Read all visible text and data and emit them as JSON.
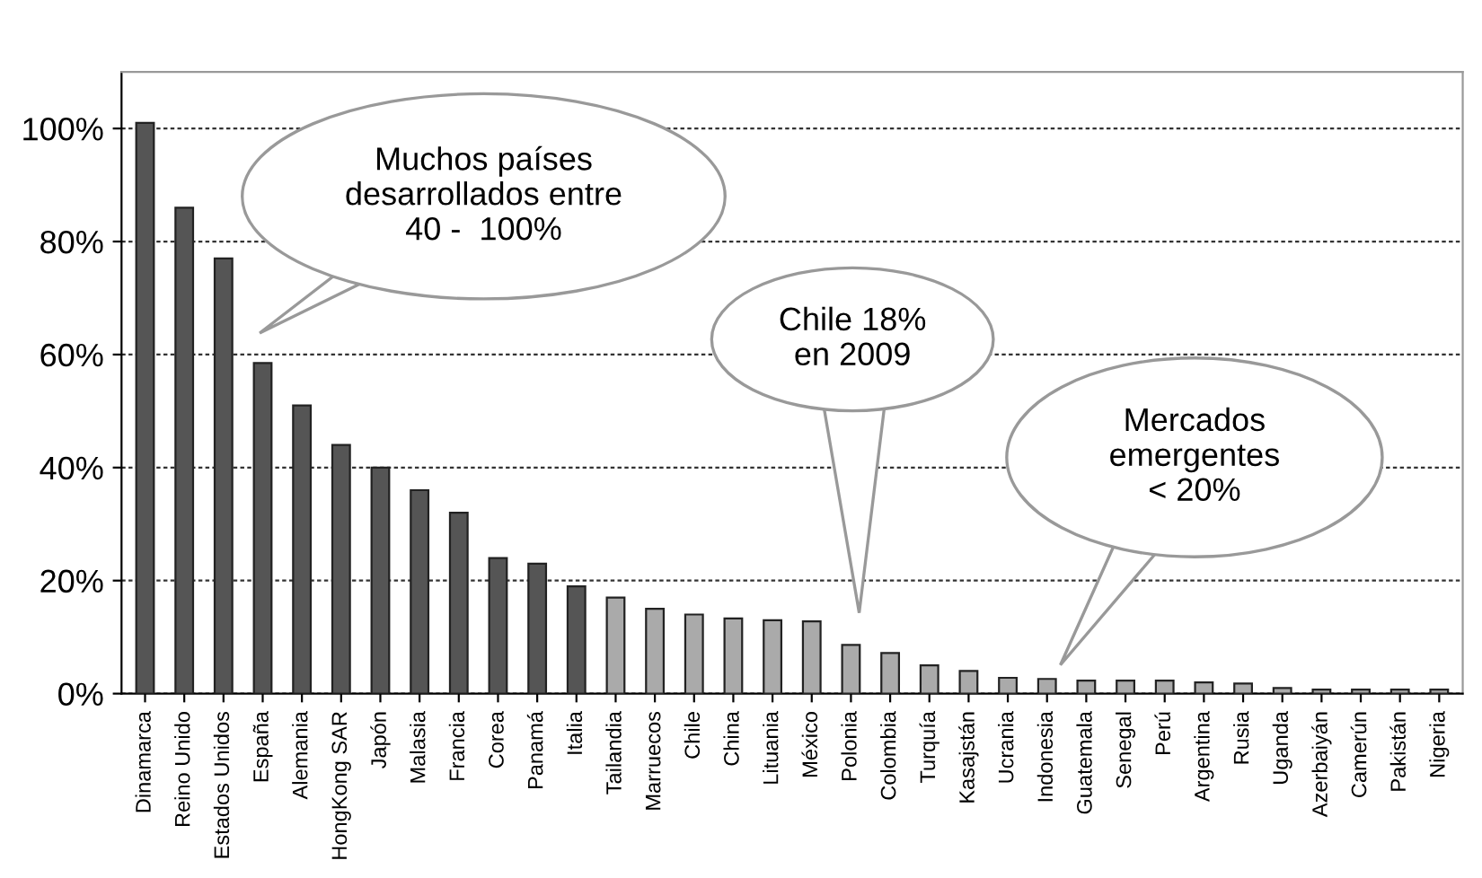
{
  "chart_data": {
    "type": "bar",
    "categories": [
      "Dinamarca",
      "Reino Unido",
      "Estados Unidos",
      "España",
      "Alemania",
      "HongKong SAR",
      "Japón",
      "Malasia",
      "Francia",
      "Corea",
      "Panamá",
      "Italia",
      "Tailandia",
      "Marruecos",
      "Chile",
      "China",
      "Lituania",
      "México",
      "Polonia",
      "Colombia",
      "Turquía",
      "Kasajstán",
      "Ucrania",
      "Indonesia",
      "Guatemala",
      "Senegal",
      "Perú",
      "Argentina",
      "Rusia",
      "Uganda",
      "Azerbaiyán",
      "Camerún",
      "Pakistán",
      "Nigeria"
    ],
    "values": [
      101,
      86,
      77,
      58.5,
      51,
      44,
      40,
      36,
      32,
      24,
      23,
      19,
      17,
      15,
      14,
      13.3,
      13,
      12.8,
      8.6,
      7.2,
      5,
      4,
      2.8,
      2.6,
      2.3,
      2.3,
      2.3,
      2,
      1.8,
      1,
      0.7,
      0.7,
      0.7,
      0.7
    ],
    "colors": [
      "#555555",
      "#555555",
      "#555555",
      "#555555",
      "#555555",
      "#555555",
      "#555555",
      "#555555",
      "#555555",
      "#555555",
      "#555555",
      "#555555",
      "#aaaaaa",
      "#aaaaaa",
      "#aaaaaa",
      "#aaaaaa",
      "#aaaaaa",
      "#aaaaaa",
      "#aaaaaa",
      "#aaaaaa",
      "#aaaaaa",
      "#aaaaaa",
      "#aaaaaa",
      "#aaaaaa",
      "#aaaaaa",
      "#aaaaaa",
      "#aaaaaa",
      "#aaaaaa",
      "#aaaaaa",
      "#aaaaaa",
      "#aaaaaa",
      "#aaaaaa",
      "#aaaaaa",
      "#aaaaaa"
    ],
    "ylim": [
      0,
      110
    ],
    "yticks": [
      {
        "value": 0,
        "label": "0%"
      },
      {
        "value": 20,
        "label": "20%"
      },
      {
        "value": 40,
        "label": "40%"
      },
      {
        "value": 60,
        "label": "60%"
      },
      {
        "value": 80,
        "label": "80%"
      },
      {
        "value": 100,
        "label": "100%"
      }
    ],
    "grid": "y",
    "annotations": [
      "Muchos países\ndesarrollados entre\n40 -  100%",
      "Chile 18%\nen 2009",
      "Mercados\nemergentes\n< 20%"
    ]
  }
}
